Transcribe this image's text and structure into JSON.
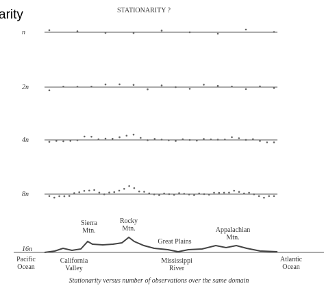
{
  "header": {
    "fragment": "arity",
    "title": "STATIONARITY ?"
  },
  "rows": [
    {
      "label": "n"
    },
    {
      "label": "2n"
    },
    {
      "label": "4n"
    },
    {
      "label": "8n"
    },
    {
      "label": "16n"
    }
  ],
  "terrain": {
    "peaks": [
      {
        "lines": [
          "Sierra",
          "Mtn."
        ]
      },
      {
        "lines": [
          "Rocky",
          "Mtn."
        ]
      },
      {
        "lines": [
          "Great Plains"
        ]
      },
      {
        "lines": [
          "Appalachian",
          "Mtn."
        ]
      }
    ],
    "places": [
      {
        "lines": [
          "Pacific",
          "Ocean"
        ]
      },
      {
        "lines": [
          "California",
          "Valley"
        ]
      },
      {
        "lines": [
          "Mississippi",
          "River"
        ]
      },
      {
        "lines": [
          "Atlantic",
          "Ocean"
        ]
      }
    ]
  },
  "caption": "Stationarity versus number of observations over the same domain"
}
